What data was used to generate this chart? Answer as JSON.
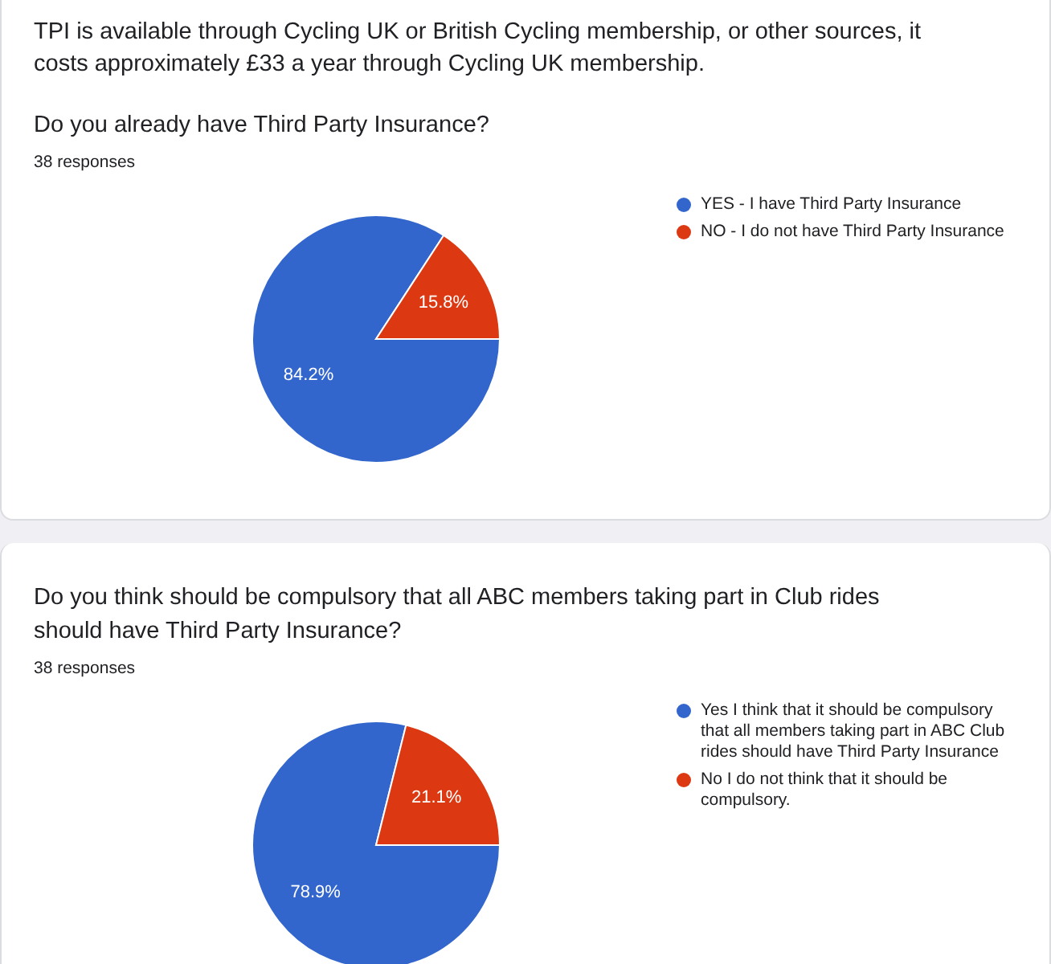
{
  "chart_data": [
    {
      "type": "pie",
      "annotations": [
        "TPI is available through Cycling UK or British Cycling membership, or other sources, it costs approximately £33 a year through Cycling UK membership."
      ],
      "title": "Do you already have Third Party Insurance?",
      "subtitle": "38 responses",
      "categories": [
        "YES - I have Third Party Insurance",
        "NO - I do not have Third Party Insurance"
      ],
      "values": [
        84.2,
        15.8
      ],
      "colors": [
        "#3366cc",
        "#dc3912"
      ],
      "value_labels": [
        "84.2%",
        "15.8%"
      ],
      "legend": "right"
    },
    {
      "type": "pie",
      "title": "Do you think should be compulsory that all ABC members taking part in Club rides should have Third Party Insurance?",
      "subtitle": "38 responses",
      "categories": [
        "Yes I think that it should be compulsory that all members taking part in ABC Club rides should have Third Party Insurance",
        "No I do not think that it should be compulsory."
      ],
      "values": [
        78.9,
        21.1
      ],
      "colors": [
        "#3366cc",
        "#dc3912"
      ],
      "value_labels": [
        "78.9%",
        "21.1%"
      ],
      "legend": "right"
    }
  ]
}
